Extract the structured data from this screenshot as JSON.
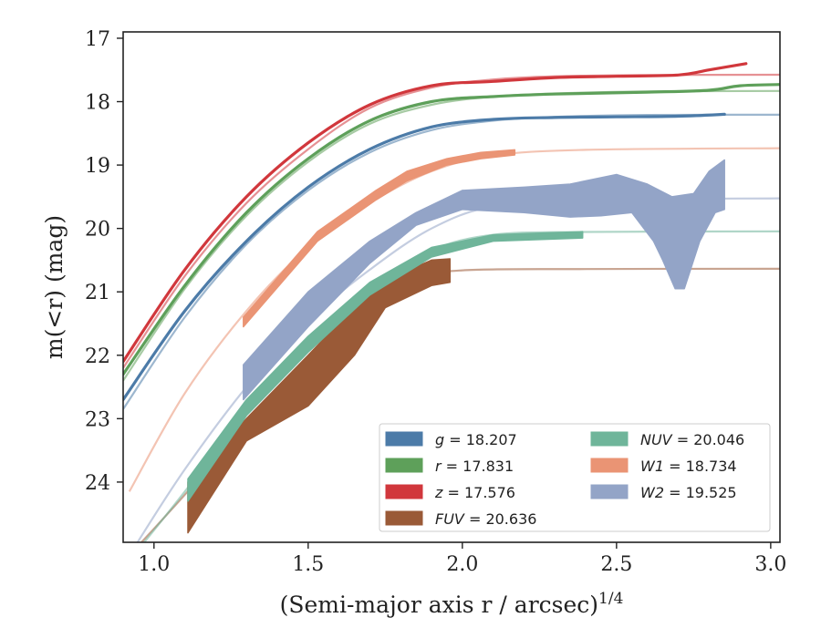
{
  "chart_data": {
    "type": "line",
    "xlabel": "(Semi-major axis r / arcsec)",
    "xlabel_exponent": "1/4",
    "ylabel": "m(<r) (mag)",
    "xlim": [
      0.9,
      3.03
    ],
    "ylim": [
      24.95,
      16.9
    ],
    "y_inverted": true,
    "grid": false,
    "legend_position": "lower-right",
    "x_ticks": [
      "1.0",
      "1.5",
      "2.0",
      "2.5",
      "3.0"
    ],
    "y_ticks": [
      "17",
      "18",
      "19",
      "20",
      "21",
      "22",
      "23",
      "24"
    ],
    "series": [
      {
        "name": "g = 18.207",
        "legend_var": "g",
        "legend_value": "= 18.207",
        "color": "#4c7ba8",
        "style": "thin",
        "model": [
          [
            0.9,
            22.85
          ],
          [
            1.1,
            21.4
          ],
          [
            1.3,
            20.25
          ],
          [
            1.5,
            19.4
          ],
          [
            1.7,
            18.8
          ],
          [
            1.9,
            18.45
          ],
          [
            2.1,
            18.3
          ],
          [
            2.3,
            18.24
          ],
          [
            2.6,
            18.21
          ],
          [
            3.03,
            18.207
          ]
        ],
        "data": [
          [
            0.9,
            22.7
          ],
          [
            1.1,
            21.3
          ],
          [
            1.3,
            20.2
          ],
          [
            1.5,
            19.35
          ],
          [
            1.7,
            18.75
          ],
          [
            1.9,
            18.4
          ],
          [
            2.1,
            18.28
          ],
          [
            2.3,
            18.25
          ],
          [
            2.5,
            18.24
          ],
          [
            2.7,
            18.23
          ],
          [
            2.85,
            18.2
          ]
        ]
      },
      {
        "name": "r = 17.831",
        "legend_var": "r",
        "legend_value": "= 17.831",
        "color": "#5ea05a",
        "style": "thin",
        "model": [
          [
            0.9,
            22.4
          ],
          [
            1.1,
            20.95
          ],
          [
            1.3,
            19.8
          ],
          [
            1.5,
            18.95
          ],
          [
            1.7,
            18.35
          ],
          [
            1.9,
            18.05
          ],
          [
            2.1,
            17.92
          ],
          [
            2.3,
            17.87
          ],
          [
            2.6,
            17.84
          ],
          [
            3.03,
            17.831
          ]
        ],
        "data": [
          [
            0.9,
            22.3
          ],
          [
            1.1,
            20.9
          ],
          [
            1.3,
            19.75
          ],
          [
            1.5,
            18.9
          ],
          [
            1.7,
            18.3
          ],
          [
            1.9,
            18.0
          ],
          [
            2.1,
            17.92
          ],
          [
            2.3,
            17.88
          ],
          [
            2.6,
            17.85
          ],
          [
            2.8,
            17.82
          ],
          [
            2.9,
            17.75
          ],
          [
            3.03,
            17.73
          ]
        ]
      },
      {
        "name": "z = 17.576",
        "legend_var": "z",
        "legend_value": "= 17.576",
        "color": "#d1373c",
        "style": "thin",
        "model": [
          [
            0.9,
            22.2
          ],
          [
            1.1,
            20.75
          ],
          [
            1.3,
            19.6
          ],
          [
            1.5,
            18.75
          ],
          [
            1.7,
            18.1
          ],
          [
            1.9,
            17.78
          ],
          [
            2.1,
            17.65
          ],
          [
            2.3,
            17.6
          ],
          [
            2.6,
            17.58
          ],
          [
            3.03,
            17.576
          ]
        ],
        "data": [
          [
            0.9,
            22.1
          ],
          [
            1.1,
            20.65
          ],
          [
            1.3,
            19.5
          ],
          [
            1.5,
            18.65
          ],
          [
            1.7,
            18.05
          ],
          [
            1.9,
            17.75
          ],
          [
            2.1,
            17.68
          ],
          [
            2.3,
            17.62
          ],
          [
            2.5,
            17.6
          ],
          [
            2.7,
            17.58
          ],
          [
            2.8,
            17.5
          ],
          [
            2.92,
            17.4
          ]
        ]
      },
      {
        "name": "FUV = 20.636",
        "legend_var": "FUV",
        "legend_value": "= 20.636",
        "color": "#9a5a37",
        "style": "band",
        "model": [
          [
            0.95,
            25.0
          ],
          [
            1.1,
            24.2
          ],
          [
            1.3,
            23.1
          ],
          [
            1.5,
            22.2
          ],
          [
            1.7,
            21.35
          ],
          [
            1.85,
            20.8
          ],
          [
            2.0,
            20.66
          ],
          [
            2.4,
            20.64
          ],
          [
            3.03,
            20.636
          ]
        ],
        "data_upper": [
          [
            1.11,
            24.0
          ],
          [
            1.3,
            23.0
          ],
          [
            1.5,
            22.0
          ],
          [
            1.72,
            20.88
          ],
          [
            1.9,
            20.5
          ],
          [
            1.96,
            20.48
          ]
        ],
        "data_lower": [
          [
            1.11,
            24.8
          ],
          [
            1.3,
            23.35
          ],
          [
            1.5,
            22.8
          ],
          [
            1.65,
            22.0
          ],
          [
            1.75,
            21.25
          ],
          [
            1.9,
            20.9
          ],
          [
            1.96,
            20.85
          ]
        ]
      },
      {
        "name": "NUV = 20.046",
        "legend_var": "NUV",
        "legend_value": "= 20.046",
        "color": "#6fb59a",
        "style": "band",
        "model": [
          [
            0.96,
            25.0
          ],
          [
            1.1,
            24.15
          ],
          [
            1.3,
            22.9
          ],
          [
            1.5,
            21.85
          ],
          [
            1.7,
            20.95
          ],
          [
            1.9,
            20.35
          ],
          [
            2.1,
            20.1
          ],
          [
            2.4,
            20.055
          ],
          [
            3.03,
            20.046
          ]
        ],
        "data_upper": [
          [
            1.11,
            23.95
          ],
          [
            1.3,
            22.7
          ],
          [
            1.5,
            21.7
          ],
          [
            1.7,
            20.85
          ],
          [
            1.9,
            20.3
          ],
          [
            2.1,
            20.1
          ],
          [
            2.39,
            20.05
          ]
        ],
        "data_lower": [
          [
            1.11,
            24.3
          ],
          [
            1.3,
            22.95
          ],
          [
            1.5,
            21.95
          ],
          [
            1.7,
            21.05
          ],
          [
            1.9,
            20.45
          ],
          [
            2.1,
            20.2
          ],
          [
            2.39,
            20.15
          ]
        ]
      },
      {
        "name": "W1 = 18.734",
        "legend_var": "W1",
        "legend_value": "= 18.734",
        "color": "#ea9474",
        "style": "band",
        "model": [
          [
            0.92,
            24.15
          ],
          [
            1.1,
            22.6
          ],
          [
            1.3,
            21.3
          ],
          [
            1.5,
            20.3
          ],
          [
            1.7,
            19.6
          ],
          [
            1.9,
            19.1
          ],
          [
            2.1,
            18.85
          ],
          [
            2.4,
            18.76
          ],
          [
            3.03,
            18.734
          ]
        ],
        "data_upper": [
          [
            1.29,
            21.4
          ],
          [
            1.53,
            20.05
          ],
          [
            1.72,
            19.4
          ],
          [
            1.82,
            19.1
          ],
          [
            1.95,
            18.9
          ],
          [
            2.06,
            18.8
          ],
          [
            2.17,
            18.76
          ]
        ],
        "data_lower": [
          [
            1.29,
            21.55
          ],
          [
            1.53,
            20.2
          ],
          [
            1.72,
            19.55
          ],
          [
            1.82,
            19.25
          ],
          [
            1.95,
            19.0
          ],
          [
            2.06,
            18.9
          ],
          [
            2.17,
            18.84
          ]
        ]
      },
      {
        "name": "W2 = 19.525",
        "legend_var": "W2",
        "legend_value": "= 19.525",
        "color": "#93a4c7",
        "style": "band",
        "model": [
          [
            0.94,
            25.0
          ],
          [
            1.1,
            23.8
          ],
          [
            1.3,
            22.5
          ],
          [
            1.5,
            21.45
          ],
          [
            1.7,
            20.65
          ],
          [
            1.9,
            20.0
          ],
          [
            2.1,
            19.65
          ],
          [
            2.4,
            19.55
          ],
          [
            3.03,
            19.525
          ]
        ],
        "data_upper": [
          [
            1.29,
            22.15
          ],
          [
            1.5,
            21.0
          ],
          [
            1.7,
            20.2
          ],
          [
            1.85,
            19.75
          ],
          [
            2.0,
            19.4
          ],
          [
            2.2,
            19.35
          ],
          [
            2.35,
            19.3
          ],
          [
            2.5,
            19.15
          ],
          [
            2.6,
            19.3
          ],
          [
            2.68,
            19.5
          ],
          [
            2.75,
            19.45
          ],
          [
            2.8,
            19.1
          ],
          [
            2.85,
            18.92
          ]
        ],
        "data_lower": [
          [
            1.29,
            22.7
          ],
          [
            1.5,
            21.55
          ],
          [
            1.7,
            20.55
          ],
          [
            1.85,
            19.95
          ],
          [
            2.0,
            19.7
          ],
          [
            2.2,
            19.75
          ],
          [
            2.35,
            19.82
          ],
          [
            2.45,
            19.8
          ],
          [
            2.55,
            19.75
          ],
          [
            2.62,
            20.2
          ],
          [
            2.65,
            20.5
          ],
          [
            2.69,
            20.95
          ],
          [
            2.72,
            20.95
          ],
          [
            2.77,
            20.2
          ],
          [
            2.82,
            19.75
          ],
          [
            2.85,
            19.7
          ]
        ]
      }
    ]
  }
}
